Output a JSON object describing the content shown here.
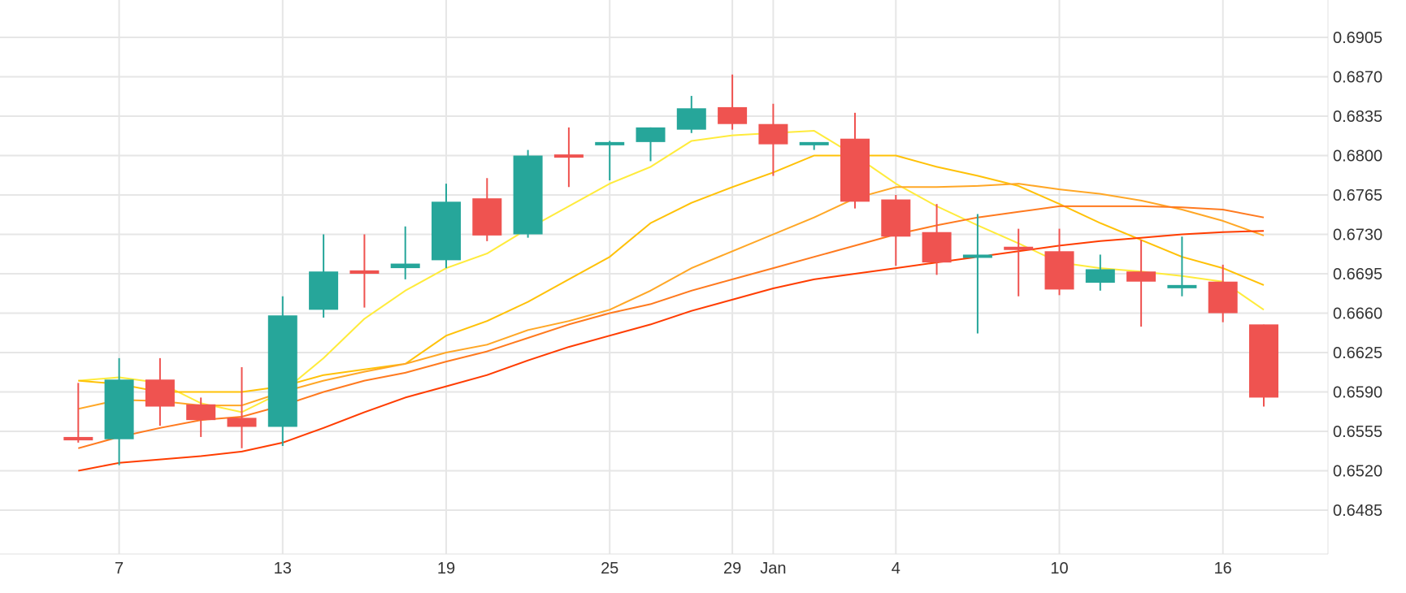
{
  "chart_data": {
    "type": "candlestick",
    "title": "",
    "xlabel": "",
    "ylabel": "",
    "y_axis_position": "right",
    "grid": true,
    "ylim": [
      0.645,
      0.694
    ],
    "y_ticks": [
      "0.6485",
      "0.6520",
      "0.6555",
      "0.6590",
      "0.6625",
      "0.6660",
      "0.6695",
      "0.6730",
      "0.6765",
      "0.6800",
      "0.6835",
      "0.6870",
      "0.6905"
    ],
    "x_ticks": [
      {
        "label": "7",
        "index": 2
      },
      {
        "label": "13",
        "index": 6
      },
      {
        "label": "19",
        "index": 10
      },
      {
        "label": "25",
        "index": 14
      },
      {
        "label": "29",
        "index": 17
      },
      {
        "label": "Jan",
        "index": 18
      },
      {
        "label": "4",
        "index": 21
      },
      {
        "label": "10",
        "index": 25
      },
      {
        "label": "16",
        "index": 29
      }
    ],
    "x_count": 31,
    "colors": {
      "up": "#26a69a",
      "down": "#ef5350",
      "grid": "#e6e6e6",
      "text": "#333333"
    },
    "candles": [
      {
        "i": 1,
        "open": 0.655,
        "high": 0.6598,
        "low": 0.6545,
        "close": 0.6547
      },
      {
        "i": 2,
        "open": 0.6548,
        "high": 0.662,
        "low": 0.6525,
        "close": 0.6601
      },
      {
        "i": 3,
        "open": 0.6601,
        "high": 0.662,
        "low": 0.656,
        "close": 0.6577
      },
      {
        "i": 4,
        "open": 0.6579,
        "high": 0.6585,
        "low": 0.655,
        "close": 0.6565
      },
      {
        "i": 5,
        "open": 0.6567,
        "high": 0.6612,
        "low": 0.654,
        "close": 0.6559
      },
      {
        "i": 6,
        "open": 0.6559,
        "high": 0.6675,
        "low": 0.6542,
        "close": 0.6658
      },
      {
        "i": 7,
        "open": 0.6663,
        "high": 0.673,
        "low": 0.6656,
        "close": 0.6697
      },
      {
        "i": 8,
        "open": 0.6698,
        "high": 0.673,
        "low": 0.6665,
        "close": 0.6695
      },
      {
        "i": 9,
        "open": 0.67,
        "high": 0.6737,
        "low": 0.669,
        "close": 0.6704
      },
      {
        "i": 10,
        "open": 0.6707,
        "high": 0.6775,
        "low": 0.67,
        "close": 0.6759
      },
      {
        "i": 11,
        "open": 0.6762,
        "high": 0.678,
        "low": 0.6724,
        "close": 0.6729
      },
      {
        "i": 12,
        "open": 0.673,
        "high": 0.6805,
        "low": 0.6727,
        "close": 0.68
      },
      {
        "i": 13,
        "open": 0.6801,
        "high": 0.6825,
        "low": 0.6772,
        "close": 0.6799
      },
      {
        "i": 14,
        "open": 0.6812,
        "high": 0.6813,
        "low": 0.6778,
        "close": 0.6812
      },
      {
        "i": 15,
        "open": 0.6812,
        "high": 0.6825,
        "low": 0.6795,
        "close": 0.6825
      },
      {
        "i": 16,
        "open": 0.6823,
        "high": 0.6853,
        "low": 0.682,
        "close": 0.6842
      },
      {
        "i": 17,
        "open": 0.6843,
        "high": 0.6872,
        "low": 0.6823,
        "close": 0.6828
      },
      {
        "i": 18,
        "open": 0.6828,
        "high": 0.6846,
        "low": 0.6782,
        "close": 0.681
      },
      {
        "i": 19,
        "open": 0.6812,
        "high": 0.681,
        "low": 0.6805,
        "close": 0.6812
      },
      {
        "i": 20,
        "open": 0.6815,
        "high": 0.6838,
        "low": 0.6753,
        "close": 0.6759
      },
      {
        "i": 21,
        "open": 0.6761,
        "high": 0.6765,
        "low": 0.6702,
        "close": 0.6728
      },
      {
        "i": 22,
        "open": 0.6732,
        "high": 0.6757,
        "low": 0.6694,
        "close": 0.6705
      },
      {
        "i": 23,
        "open": 0.671,
        "high": 0.6748,
        "low": 0.6642,
        "close": 0.6712
      },
      {
        "i": 24,
        "open": 0.6719,
        "high": 0.6735,
        "low": 0.6675,
        "close": 0.6717
      },
      {
        "i": 25,
        "open": 0.6715,
        "high": 0.6735,
        "low": 0.6676,
        "close": 0.6681
      },
      {
        "i": 26,
        "open": 0.6687,
        "high": 0.6712,
        "low": 0.668,
        "close": 0.6699
      },
      {
        "i": 27,
        "open": 0.6697,
        "high": 0.6725,
        "low": 0.6648,
        "close": 0.6688
      },
      {
        "i": 28,
        "open": 0.6685,
        "high": 0.6728,
        "low": 0.6675,
        "close": 0.6685
      },
      {
        "i": 29,
        "open": 0.6688,
        "high": 0.6703,
        "low": 0.6652,
        "close": 0.666
      },
      {
        "i": 30,
        "open": 0.665,
        "high": 0.665,
        "low": 0.6577,
        "close": 0.6585
      }
    ],
    "series": [
      {
        "color": "#ffeb3b",
        "values": [
          [
            1,
            0.66
          ],
          [
            2,
            0.6603
          ],
          [
            3,
            0.6598
          ],
          [
            4,
            0.658
          ],
          [
            5,
            0.6572
          ],
          [
            6,
            0.659
          ],
          [
            7,
            0.662
          ],
          [
            8,
            0.6655
          ],
          [
            9,
            0.668
          ],
          [
            10,
            0.67
          ],
          [
            11,
            0.6713
          ],
          [
            12,
            0.6735
          ],
          [
            13,
            0.6755
          ],
          [
            14,
            0.6775
          ],
          [
            15,
            0.679
          ],
          [
            16,
            0.6813
          ],
          [
            17,
            0.6818
          ],
          [
            18,
            0.682
          ],
          [
            19,
            0.6822
          ],
          [
            20,
            0.68
          ],
          [
            21,
            0.6775
          ],
          [
            22,
            0.6755
          ],
          [
            23,
            0.6738
          ],
          [
            24,
            0.6722
          ],
          [
            25,
            0.6705
          ],
          [
            26,
            0.67
          ],
          [
            27,
            0.6697
          ],
          [
            28,
            0.6693
          ],
          [
            29,
            0.6688
          ],
          [
            30,
            0.6663
          ]
        ]
      },
      {
        "color": "#ffc107",
        "values": [
          [
            1,
            0.66
          ],
          [
            2,
            0.6597
          ],
          [
            3,
            0.659
          ],
          [
            4,
            0.659
          ],
          [
            5,
            0.659
          ],
          [
            6,
            0.6595
          ],
          [
            7,
            0.6605
          ],
          [
            8,
            0.661
          ],
          [
            9,
            0.6615
          ],
          [
            10,
            0.664
          ],
          [
            11,
            0.6653
          ],
          [
            12,
            0.667
          ],
          [
            13,
            0.669
          ],
          [
            14,
            0.671
          ],
          [
            15,
            0.674
          ],
          [
            16,
            0.6758
          ],
          [
            17,
            0.6772
          ],
          [
            18,
            0.6785
          ],
          [
            19,
            0.68
          ],
          [
            20,
            0.68
          ],
          [
            21,
            0.68
          ],
          [
            22,
            0.679
          ],
          [
            23,
            0.6782
          ],
          [
            24,
            0.6773
          ],
          [
            25,
            0.6757
          ],
          [
            26,
            0.674
          ],
          [
            27,
            0.6725
          ],
          [
            28,
            0.671
          ],
          [
            29,
            0.67
          ],
          [
            30,
            0.6685
          ]
        ]
      },
      {
        "color": "#ffa726",
        "values": [
          [
            1,
            0.6575
          ],
          [
            2,
            0.6583
          ],
          [
            3,
            0.6582
          ],
          [
            4,
            0.6578
          ],
          [
            5,
            0.6578
          ],
          [
            6,
            0.659
          ],
          [
            7,
            0.66
          ],
          [
            8,
            0.6608
          ],
          [
            9,
            0.6615
          ],
          [
            10,
            0.6625
          ],
          [
            11,
            0.6632
          ],
          [
            12,
            0.6645
          ],
          [
            13,
            0.6653
          ],
          [
            14,
            0.6663
          ],
          [
            15,
            0.668
          ],
          [
            16,
            0.67
          ],
          [
            17,
            0.6715
          ],
          [
            18,
            0.673
          ],
          [
            19,
            0.6745
          ],
          [
            20,
            0.6762
          ],
          [
            21,
            0.6772
          ],
          [
            22,
            0.6772
          ],
          [
            23,
            0.6773
          ],
          [
            24,
            0.6775
          ],
          [
            25,
            0.677
          ],
          [
            26,
            0.6766
          ],
          [
            27,
            0.676
          ],
          [
            28,
            0.6752
          ],
          [
            29,
            0.6742
          ],
          [
            30,
            0.6729
          ]
        ]
      },
      {
        "color": "#ff7a1f",
        "values": [
          [
            1,
            0.654
          ],
          [
            2,
            0.655
          ],
          [
            3,
            0.6558
          ],
          [
            4,
            0.6565
          ],
          [
            5,
            0.6568
          ],
          [
            6,
            0.6578
          ],
          [
            7,
            0.659
          ],
          [
            8,
            0.66
          ],
          [
            9,
            0.6607
          ],
          [
            10,
            0.6617
          ],
          [
            11,
            0.6626
          ],
          [
            12,
            0.6638
          ],
          [
            13,
            0.665
          ],
          [
            14,
            0.666
          ],
          [
            15,
            0.6668
          ],
          [
            16,
            0.668
          ],
          [
            17,
            0.669
          ],
          [
            18,
            0.67
          ],
          [
            19,
            0.671
          ],
          [
            20,
            0.672
          ],
          [
            21,
            0.673
          ],
          [
            22,
            0.6738
          ],
          [
            23,
            0.6745
          ],
          [
            24,
            0.675
          ],
          [
            25,
            0.6755
          ],
          [
            26,
            0.6755
          ],
          [
            27,
            0.6755
          ],
          [
            28,
            0.6754
          ],
          [
            29,
            0.6752
          ],
          [
            30,
            0.6745
          ]
        ]
      },
      {
        "color": "#ff3d00",
        "values": [
          [
            1,
            0.652
          ],
          [
            2,
            0.6527
          ],
          [
            3,
            0.653
          ],
          [
            4,
            0.6533
          ],
          [
            5,
            0.6537
          ],
          [
            6,
            0.6545
          ],
          [
            7,
            0.6558
          ],
          [
            8,
            0.6572
          ],
          [
            9,
            0.6585
          ],
          [
            10,
            0.6595
          ],
          [
            11,
            0.6605
          ],
          [
            12,
            0.6618
          ],
          [
            13,
            0.663
          ],
          [
            14,
            0.664
          ],
          [
            15,
            0.665
          ],
          [
            16,
            0.6662
          ],
          [
            17,
            0.6672
          ],
          [
            18,
            0.6682
          ],
          [
            19,
            0.669
          ],
          [
            20,
            0.6695
          ],
          [
            21,
            0.67
          ],
          [
            22,
            0.6705
          ],
          [
            23,
            0.671
          ],
          [
            24,
            0.6715
          ],
          [
            25,
            0.672
          ],
          [
            26,
            0.6724
          ],
          [
            27,
            0.6727
          ],
          [
            28,
            0.673
          ],
          [
            29,
            0.6732
          ],
          [
            30,
            0.6733
          ]
        ]
      }
    ]
  }
}
